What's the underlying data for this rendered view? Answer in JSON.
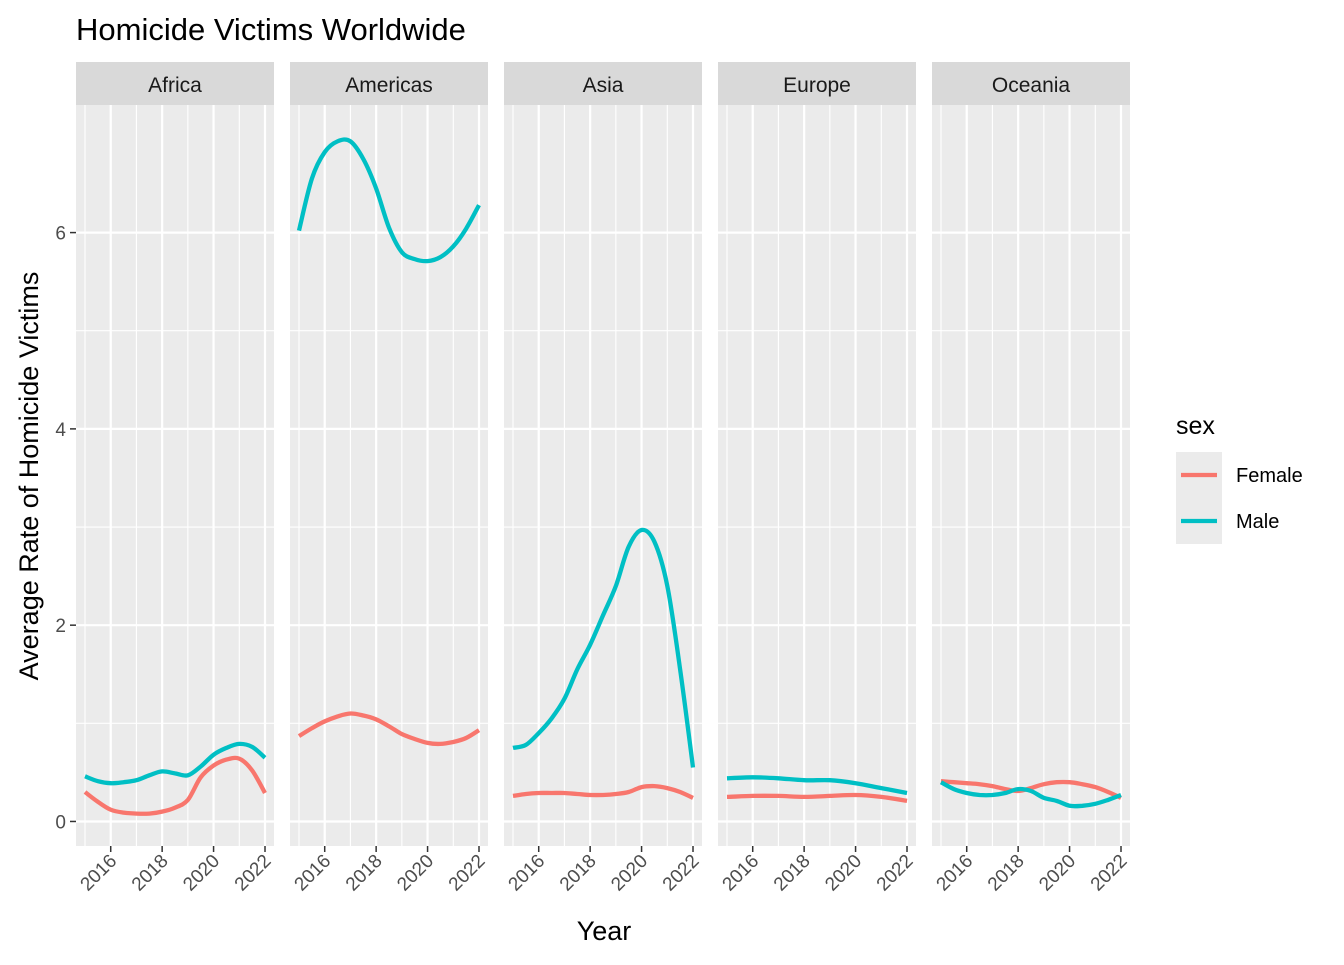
{
  "chart_data": {
    "type": "line",
    "title": "Homicide Victims Worldwide",
    "xlabel": "Year",
    "ylabel": "Average Rate of Homicide Victims",
    "xlim": [
      2014.65,
      2022.35
    ],
    "ylim": [
      -0.25,
      7.3
    ],
    "x_ticks": [
      2016,
      2018,
      2020,
      2022
    ],
    "x_tick_labels": [
      "2016",
      "2018",
      "2020",
      "2022"
    ],
    "y_ticks": [
      0,
      2,
      4,
      6
    ],
    "y_tick_labels": [
      "0",
      "2",
      "4",
      "6"
    ],
    "grid": true,
    "legend": {
      "title": "sex",
      "position": "right",
      "entries": [
        {
          "label": "Female",
          "color": "#F8766D"
        },
        {
          "label": "Male",
          "color": "#00BFC4"
        }
      ]
    },
    "facets": [
      {
        "name": "Africa",
        "series": [
          {
            "name": "Female",
            "color": "#F8766D",
            "x": [
              2015,
              2015.5,
              2016,
              2016.5,
              2017,
              2017.5,
              2018,
              2018.5,
              2019,
              2019.5,
              2020,
              2020.5,
              2021,
              2021.5,
              2022
            ],
            "values": [
              0.3,
              0.2,
              0.12,
              0.09,
              0.08,
              0.08,
              0.1,
              0.14,
              0.22,
              0.45,
              0.57,
              0.63,
              0.64,
              0.52,
              0.29
            ]
          },
          {
            "name": "Male",
            "color": "#00BFC4",
            "x": [
              2015,
              2015.5,
              2016,
              2016.5,
              2017,
              2017.5,
              2018,
              2018.5,
              2019,
              2019.5,
              2020,
              2020.5,
              2021,
              2021.5,
              2022
            ],
            "values": [
              0.46,
              0.41,
              0.39,
              0.4,
              0.42,
              0.47,
              0.51,
              0.49,
              0.47,
              0.56,
              0.68,
              0.75,
              0.79,
              0.76,
              0.65
            ]
          }
        ]
      },
      {
        "name": "Americas",
        "series": [
          {
            "name": "Female",
            "color": "#F8766D",
            "x": [
              2015,
              2015.5,
              2016,
              2016.5,
              2017,
              2017.5,
              2018,
              2018.5,
              2019,
              2019.5,
              2020,
              2020.5,
              2021,
              2021.5,
              2022
            ],
            "values": [
              0.87,
              0.95,
              1.02,
              1.07,
              1.1,
              1.08,
              1.04,
              0.97,
              0.89,
              0.84,
              0.8,
              0.79,
              0.81,
              0.85,
              0.93
            ]
          },
          {
            "name": "Male",
            "color": "#00BFC4",
            "x": [
              2015,
              2015.5,
              2016,
              2016.5,
              2017,
              2017.5,
              2018,
              2018.5,
              2019,
              2019.5,
              2020,
              2020.5,
              2021,
              2021.5,
              2022
            ],
            "values": [
              6.02,
              6.55,
              6.82,
              6.93,
              6.93,
              6.75,
              6.45,
              6.05,
              5.8,
              5.73,
              5.71,
              5.75,
              5.86,
              6.04,
              6.28
            ]
          }
        ]
      },
      {
        "name": "Asia",
        "series": [
          {
            "name": "Female",
            "color": "#F8766D",
            "x": [
              2015,
              2015.5,
              2016,
              2016.5,
              2017,
              2017.5,
              2018,
              2018.5,
              2019,
              2019.5,
              2020,
              2020.5,
              2021,
              2021.5,
              2022
            ],
            "values": [
              0.26,
              0.28,
              0.29,
              0.29,
              0.29,
              0.28,
              0.27,
              0.27,
              0.28,
              0.3,
              0.35,
              0.36,
              0.34,
              0.3,
              0.24
            ]
          },
          {
            "name": "Male",
            "color": "#00BFC4",
            "x": [
              2015,
              2015.5,
              2016,
              2016.5,
              2017,
              2017.5,
              2018,
              2018.5,
              2019,
              2019.5,
              2020,
              2020.5,
              2021,
              2021.5,
              2022
            ],
            "values": [
              0.75,
              0.78,
              0.9,
              1.05,
              1.25,
              1.55,
              1.8,
              2.1,
              2.4,
              2.8,
              2.97,
              2.85,
              2.4,
              1.55,
              0.55
            ]
          }
        ]
      },
      {
        "name": "Europe",
        "series": [
          {
            "name": "Female",
            "color": "#F8766D",
            "x": [
              2015,
              2016,
              2017,
              2018,
              2019,
              2020,
              2021,
              2022
            ],
            "values": [
              0.25,
              0.26,
              0.26,
              0.25,
              0.26,
              0.27,
              0.25,
              0.21
            ]
          },
          {
            "name": "Male",
            "color": "#00BFC4",
            "x": [
              2015,
              2016,
              2017,
              2018,
              2019,
              2020,
              2021,
              2022
            ],
            "values": [
              0.44,
              0.45,
              0.44,
              0.42,
              0.42,
              0.39,
              0.34,
              0.29
            ]
          }
        ]
      },
      {
        "name": "Oceania",
        "series": [
          {
            "name": "Female",
            "color": "#F8766D",
            "x": [
              2015,
              2015.5,
              2016,
              2016.5,
              2017,
              2017.5,
              2018,
              2018.5,
              2019,
              2019.5,
              2020,
              2020.5,
              2021,
              2021.5,
              2022
            ],
            "values": [
              0.41,
              0.4,
              0.39,
              0.38,
              0.36,
              0.33,
              0.31,
              0.34,
              0.38,
              0.4,
              0.4,
              0.38,
              0.35,
              0.3,
              0.24
            ]
          },
          {
            "name": "Male",
            "color": "#00BFC4",
            "x": [
              2015,
              2015.5,
              2016,
              2016.5,
              2017,
              2017.5,
              2018,
              2018.5,
              2019,
              2019.5,
              2020,
              2020.5,
              2021,
              2021.5,
              2022
            ],
            "values": [
              0.4,
              0.33,
              0.29,
              0.27,
              0.27,
              0.29,
              0.33,
              0.31,
              0.24,
              0.21,
              0.16,
              0.16,
              0.18,
              0.22,
              0.27
            ]
          }
        ]
      }
    ]
  }
}
